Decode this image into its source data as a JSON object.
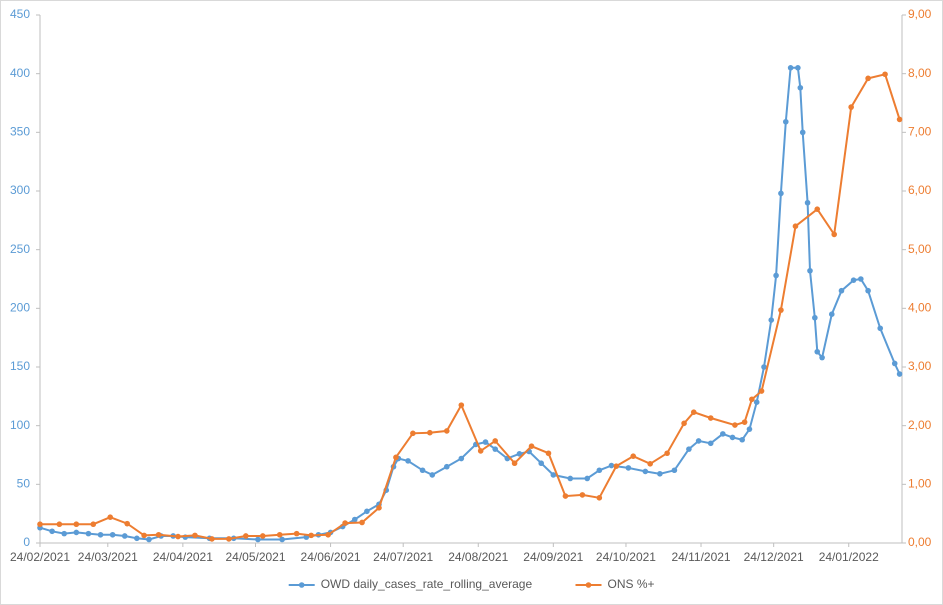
{
  "chart_data": {
    "type": "line",
    "xlim": [
      "24/02/2021",
      "15/02/2022"
    ],
    "xticks": [
      "24/02/2021",
      "24/03/2021",
      "24/04/2021",
      "24/05/2021",
      "24/06/2021",
      "24/07/2021",
      "24/08/2021",
      "24/09/2021",
      "24/10/2021",
      "24/11/2021",
      "24/12/2021",
      "24/01/2022"
    ],
    "ylim": [
      0,
      450
    ],
    "yticks": [
      0,
      50,
      100,
      150,
      200,
      250,
      300,
      350,
      400,
      450
    ],
    "y2lim": [
      0,
      9
    ],
    "y2ticks": [
      {
        "value": 0,
        "label": "0,00"
      },
      {
        "value": 1,
        "label": "1,00"
      },
      {
        "value": 2,
        "label": "2,00"
      },
      {
        "value": 3,
        "label": "3,00"
      },
      {
        "value": 4,
        "label": "4,00"
      },
      {
        "value": 5,
        "label": "5,00"
      },
      {
        "value": 6,
        "label": "6,00"
      },
      {
        "value": 7,
        "label": "7,00"
      },
      {
        "value": 8,
        "label": "8,00"
      },
      {
        "value": 9,
        "label": "9,00"
      }
    ],
    "grid": false,
    "legend": "bottom",
    "series": [
      {
        "name": "OWD daily_cases_rate_rolling_average",
        "color": "#5b9bd5",
        "x": [
          "24/02/2021",
          "01/03/2021",
          "06/03/2021",
          "11/03/2021",
          "16/03/2021",
          "21/03/2021",
          "26/03/2021",
          "31/03/2021",
          "05/04/2021",
          "10/04/2021",
          "15/04/2021",
          "20/04/2021",
          "25/04/2021",
          "05/05/2021",
          "15/05/2021",
          "25/05/2021",
          "04/06/2021",
          "14/06/2021",
          "19/06/2021",
          "24/06/2021",
          "29/06/2021",
          "04/07/2021",
          "09/07/2021",
          "14/07/2021",
          "17/07/2021",
          "20/07/2021",
          "22/07/2021",
          "26/07/2021",
          "01/08/2021",
          "05/08/2021",
          "11/08/2021",
          "17/08/2021",
          "23/08/2021",
          "27/08/2021",
          "31/08/2021",
          "05/09/2021",
          "10/09/2021",
          "14/09/2021",
          "19/09/2021",
          "24/09/2021",
          "01/10/2021",
          "08/10/2021",
          "13/10/2021",
          "18/10/2021",
          "25/10/2021",
          "01/11/2021",
          "07/11/2021",
          "13/11/2021",
          "19/11/2021",
          "23/11/2021",
          "28/11/2021",
          "03/12/2021",
          "07/12/2021",
          "11/12/2021",
          "14/12/2021",
          "17/12/2021",
          "20/12/2021",
          "23/12/2021",
          "25/12/2021",
          "27/12/2021",
          "29/12/2021",
          "31/12/2021",
          "03/01/2022",
          "04/01/2022",
          "05/01/2022",
          "07/01/2022",
          "08/01/2022",
          "10/01/2022",
          "11/01/2022",
          "13/01/2022",
          "17/01/2022",
          "21/01/2022",
          "26/01/2022",
          "29/01/2022",
          "01/02/2022",
          "06/02/2022",
          "12/02/2022",
          "14/02/2022"
        ],
        "values": [
          13,
          10,
          8,
          9,
          8,
          7,
          7,
          6,
          4,
          3,
          6,
          6,
          5,
          4,
          4,
          3,
          3,
          5,
          7,
          9,
          14,
          20,
          27,
          33,
          45,
          65,
          72,
          70,
          62,
          58,
          65,
          72,
          84,
          86,
          80,
          72,
          76,
          78,
          68,
          58,
          55,
          55,
          62,
          66,
          64,
          61,
          59,
          62,
          80,
          87,
          85,
          93,
          90,
          88,
          97,
          120,
          150,
          190,
          228,
          298,
          359,
          405,
          405,
          388,
          350,
          290,
          232,
          192,
          163,
          158,
          195,
          215,
          224,
          225,
          215,
          183,
          153,
          144
        ]
      },
      {
        "name": "ONS %+",
        "color": "#ed7d31",
        "axis": "y2",
        "x": [
          "24/02/2021",
          "04/03/2021",
          "11/03/2021",
          "18/03/2021",
          "25/03/2021",
          "01/04/2021",
          "08/04/2021",
          "14/04/2021",
          "22/04/2021",
          "29/04/2021",
          "06/05/2021",
          "13/05/2021",
          "20/05/2021",
          "27/05/2021",
          "03/06/2021",
          "10/06/2021",
          "16/06/2021",
          "23/06/2021",
          "30/06/2021",
          "07/07/2021",
          "14/07/2021",
          "21/07/2021",
          "28/07/2021",
          "04/08/2021",
          "11/08/2021",
          "17/08/2021",
          "25/08/2021",
          "31/08/2021",
          "08/09/2021",
          "15/09/2021",
          "22/09/2021",
          "29/09/2021",
          "06/10/2021",
          "13/10/2021",
          "20/10/2021",
          "27/10/2021",
          "03/11/2021",
          "10/11/2021",
          "17/11/2021",
          "21/11/2021",
          "28/11/2021",
          "08/12/2021",
          "12/12/2021",
          "15/12/2021",
          "19/12/2021",
          "27/12/2021",
          "02/01/2022",
          "11/01/2022",
          "18/01/2022",
          "25/01/2022",
          "01/02/2022",
          "08/02/2022",
          "14/02/2022"
        ],
        "values": [
          0.32,
          0.32,
          0.32,
          0.32,
          0.44,
          0.33,
          0.13,
          0.14,
          0.11,
          0.13,
          0.07,
          0.07,
          0.12,
          0.12,
          0.14,
          0.16,
          0.13,
          0.14,
          0.34,
          0.35,
          0.6,
          1.46,
          1.87,
          1.88,
          1.91,
          2.35,
          1.57,
          1.74,
          1.36,
          1.65,
          1.53,
          0.8,
          0.82,
          0.77,
          1.31,
          1.48,
          1.35,
          1.53,
          2.04,
          2.23,
          2.13,
          2.01,
          2.06,
          2.45,
          2.59,
          3.97,
          5.4,
          5.69,
          5.26,
          7.43,
          7.92,
          7.99,
          7.22
        ]
      }
    ]
  }
}
